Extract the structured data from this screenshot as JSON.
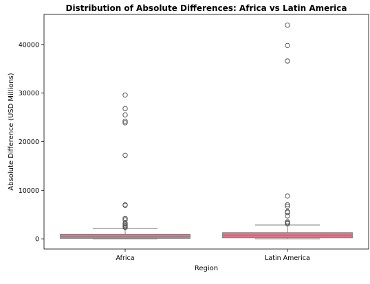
{
  "chart_data": {
    "type": "box",
    "title": "Distribution of Absolute Differences: Africa vs Latin America",
    "xlabel": "Region",
    "ylabel": "Absolute Difference (USD Millions)",
    "categories": [
      "Africa",
      "Latin America"
    ],
    "ylim": [
      -2100,
      46200
    ],
    "yticks": [
      0,
      10000,
      20000,
      30000,
      40000
    ],
    "grid": false,
    "box_color": "#e0768a",
    "edge_color": "#7f7f7f",
    "series": [
      {
        "category": "Africa",
        "whisker_low": 0,
        "q1": 100,
        "median": 450,
        "q3": 950,
        "whisker_high": 2100,
        "outliers": [
          2350,
          2550,
          2750,
          3000,
          3200,
          3900,
          4200,
          6900,
          7000,
          17200,
          23900,
          24200,
          25500,
          26800,
          29600
        ]
      },
      {
        "category": "Latin America",
        "whisker_low": 0,
        "q1": 200,
        "median": 700,
        "q3": 1300,
        "whisker_high": 2850,
        "outliers": [
          3100,
          3300,
          3500,
          4700,
          5400,
          5600,
          6700,
          7000,
          8800,
          36600,
          39800,
          44000
        ]
      }
    ]
  }
}
